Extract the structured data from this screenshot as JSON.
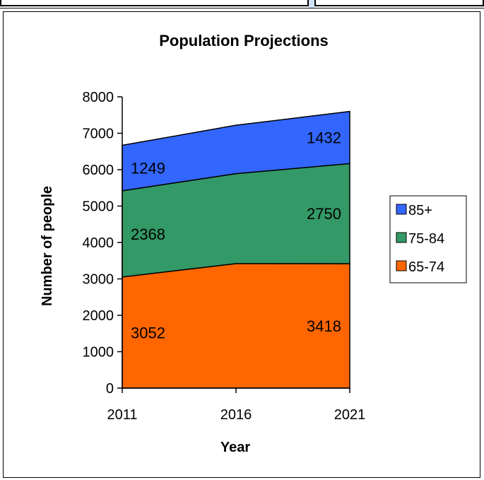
{
  "chart_data": {
    "type": "area",
    "stacked": true,
    "title": "Population Projections",
    "xlabel": "Year",
    "ylabel": "Number of people",
    "categories": [
      "2011",
      "2016",
      "2021"
    ],
    "ylim": [
      0,
      8000
    ],
    "yticks": [
      0,
      1000,
      2000,
      3000,
      4000,
      5000,
      6000,
      7000,
      8000
    ],
    "grid": false,
    "legend_position": "right",
    "series": [
      {
        "name": "65-74",
        "values": [
          3052,
          3420,
          3418
        ],
        "color": "#ff6600"
      },
      {
        "name": "75-84",
        "values": [
          2368,
          2470,
          2750
        ],
        "color": "#339966"
      },
      {
        "name": "85+",
        "values": [
          1249,
          1330,
          1432
        ],
        "color": "#3366ff"
      }
    ],
    "data_labels": [
      {
        "series": "65-74",
        "category": "2011",
        "text": "3052"
      },
      {
        "series": "65-74",
        "category": "2021",
        "text": "3418"
      },
      {
        "series": "75-84",
        "category": "2011",
        "text": "2368"
      },
      {
        "series": "75-84",
        "category": "2021",
        "text": "2750"
      },
      {
        "series": "85+",
        "category": "2011",
        "text": "1249"
      },
      {
        "series": "85+",
        "category": "2021",
        "text": "1432"
      }
    ],
    "legend_order": [
      "85+",
      "75-84",
      "65-74"
    ]
  }
}
